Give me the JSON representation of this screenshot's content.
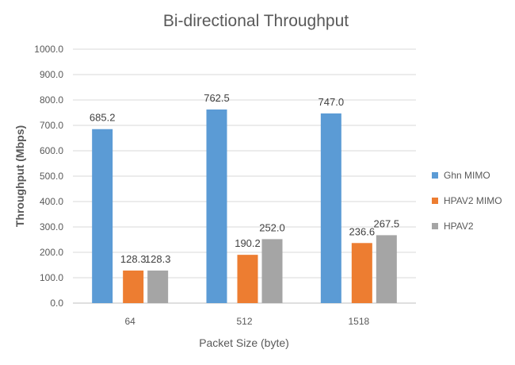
{
  "chart_data": {
    "type": "bar",
    "title": "Bi-directional Throughput",
    "xlabel": "Packet Size (byte)",
    "ylabel": "Throughput (Mbps)",
    "categories": [
      "64",
      "512",
      "1518"
    ],
    "series": [
      {
        "name": "Ghn MIMO",
        "color": "#5b9bd5",
        "values": [
          685.2,
          762.5,
          747.0
        ]
      },
      {
        "name": "HPAV2 MIMO",
        "color": "#ed7d31",
        "values": [
          128.3,
          190.2,
          236.6
        ]
      },
      {
        "name": "HPAV2",
        "color": "#a5a5a5",
        "values": [
          128.3,
          252.0,
          267.5
        ]
      }
    ],
    "ylim": [
      0,
      1000
    ],
    "yticks": [
      "0.0",
      "100.0",
      "200.0",
      "300.0",
      "400.0",
      "500.0",
      "600.0",
      "700.0",
      "800.0",
      "900.0",
      "1000.0"
    ],
    "value_labels": [
      [
        "685.2",
        "762.5",
        "747.0"
      ],
      [
        "128.3",
        "190.2",
        "236.6"
      ],
      [
        "128.3",
        "252.0",
        "267.5"
      ]
    ],
    "grid": true,
    "legend": "right"
  }
}
